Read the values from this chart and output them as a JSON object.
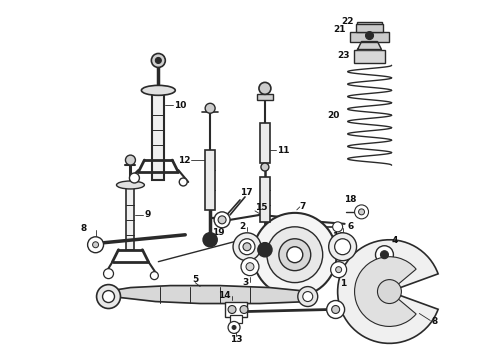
{
  "bg_color": "#ffffff",
  "fig_width": 4.9,
  "fig_height": 3.6,
  "dpi": 100,
  "line_color": "#2a2a2a",
  "label_color": "#111111",
  "label_fontsize": 6.5
}
